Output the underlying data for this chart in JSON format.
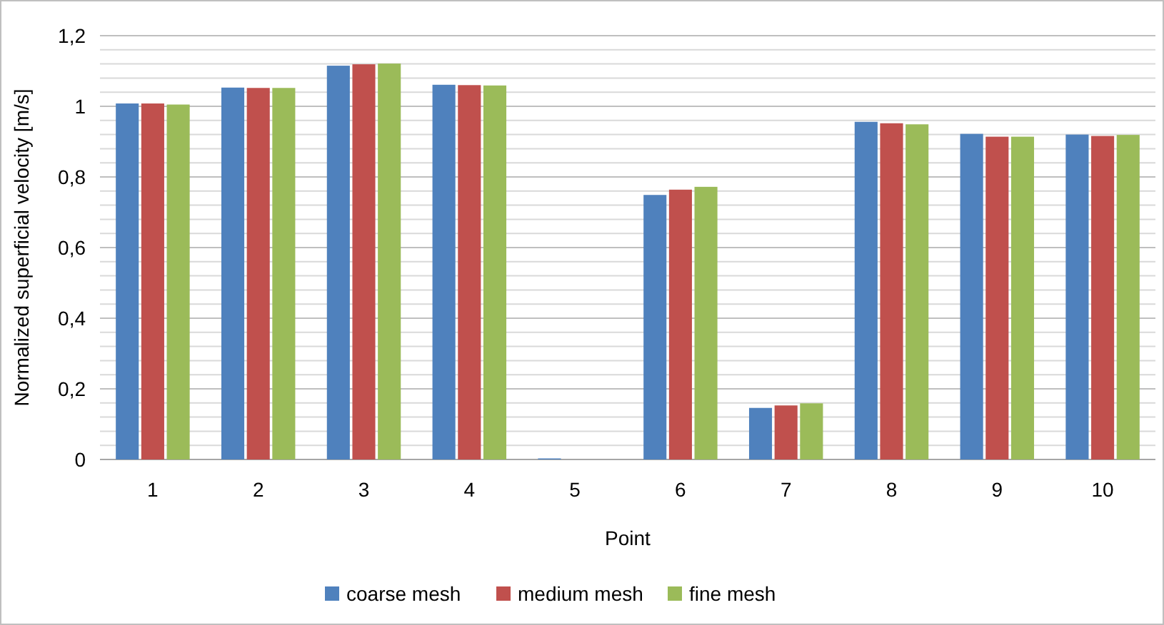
{
  "chart_data": {
    "type": "bar",
    "xlabel": "Point",
    "ylabel": "Normalized superficial velocity [m/s]",
    "categories": [
      "1",
      "2",
      "3",
      "4",
      "5",
      "6",
      "7",
      "8",
      "9",
      "10"
    ],
    "series": [
      {
        "name": "coarse mesh",
        "color": "#4f81bd",
        "values": [
          1.008,
          1.053,
          1.115,
          1.061,
          0.003,
          0.749,
          0.146,
          0.956,
          0.922,
          0.92
        ]
      },
      {
        "name": "medium mesh",
        "color": "#c0504d",
        "values": [
          1.008,
          1.052,
          1.119,
          1.06,
          0,
          0.764,
          0.153,
          0.952,
          0.914,
          0.916
        ]
      },
      {
        "name": "fine mesh",
        "color": "#9bbb59",
        "values": [
          1.005,
          1.052,
          1.121,
          1.059,
          0,
          0.772,
          0.159,
          0.949,
          0.914,
          0.919
        ]
      }
    ],
    "ylim": [
      0,
      1.2
    ],
    "yticks": [
      {
        "value": 0,
        "label": "0"
      },
      {
        "value": 0.04,
        "label": null
      },
      {
        "value": 0.08,
        "label": null
      },
      {
        "value": 0.12,
        "label": null
      },
      {
        "value": 0.16,
        "label": null
      },
      {
        "value": 0.2,
        "label": "0,2"
      },
      {
        "value": 0.24,
        "label": null
      },
      {
        "value": 0.28,
        "label": null
      },
      {
        "value": 0.32,
        "label": null
      },
      {
        "value": 0.36,
        "label": null
      },
      {
        "value": 0.4,
        "label": "0,4"
      },
      {
        "value": 0.44,
        "label": null
      },
      {
        "value": 0.48,
        "label": null
      },
      {
        "value": 0.52,
        "label": null
      },
      {
        "value": 0.56,
        "label": null
      },
      {
        "value": 0.6,
        "label": "0,6"
      },
      {
        "value": 0.64,
        "label": null
      },
      {
        "value": 0.68,
        "label": null
      },
      {
        "value": 0.72,
        "label": null
      },
      {
        "value": 0.76,
        "label": null
      },
      {
        "value": 0.8,
        "label": "0,8"
      },
      {
        "value": 0.84,
        "label": null
      },
      {
        "value": 0.88,
        "label": null
      },
      {
        "value": 0.92,
        "label": null
      },
      {
        "value": 0.96,
        "label": null
      },
      {
        "value": 1,
        "label": "1"
      },
      {
        "value": 1.04,
        "label": null
      },
      {
        "value": 1.08,
        "label": null
      },
      {
        "value": 1.12,
        "label": null
      },
      {
        "value": 1.16,
        "label": null
      },
      {
        "value": 1.2,
        "label": "1,2"
      }
    ],
    "grid": "y",
    "legend": "bottom"
  }
}
